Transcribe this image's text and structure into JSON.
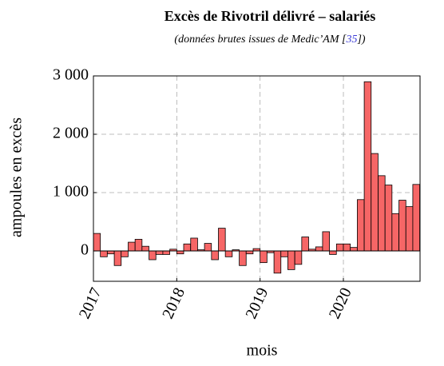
{
  "chart_data": {
    "type": "bar",
    "title": "Excès de Rivotril délivré – salariés",
    "subtitle": [
      "(données brutes issues de Medic’AM [",
      "35",
      "])"
    ],
    "ylabel": "ampoules en excès",
    "xlabel": "mois",
    "color": "#f66666",
    "grid": true,
    "x": [
      2017,
      2017.083,
      2017.167,
      2017.25,
      2017.333,
      2017.417,
      2017.5,
      2017.583,
      2017.667,
      2017.75,
      2017.833,
      2017.917,
      2018,
      2018.083,
      2018.167,
      2018.25,
      2018.333,
      2018.417,
      2018.5,
      2018.583,
      2018.667,
      2018.75,
      2018.833,
      2018.917,
      2019,
      2019.083,
      2019.167,
      2019.25,
      2019.333,
      2019.417,
      2019.5,
      2019.583,
      2019.667,
      2019.75,
      2019.833,
      2019.917,
      2020,
      2020.083,
      2020.167,
      2020.25,
      2020.333,
      2020.417,
      2020.5,
      2020.583,
      2020.667,
      2020.75,
      2020.833
    ],
    "values": [
      300,
      -100,
      -50,
      -250,
      -100,
      150,
      200,
      80,
      -150,
      -60,
      -60,
      30,
      -50,
      120,
      220,
      20,
      130,
      -150,
      390,
      -100,
      20,
      -250,
      -50,
      40,
      -200,
      -30,
      -380,
      -100,
      -320,
      -230,
      240,
      30,
      70,
      330,
      -60,
      120,
      120,
      60,
      880,
      2900,
      1670,
      1290,
      1130,
      640,
      870,
      760,
      1140
    ],
    "xlim": [
      2017,
      2020.92
    ],
    "xticks": [
      2017,
      2018,
      2019,
      2020
    ],
    "ylim": [
      -520,
      3000
    ],
    "yticks": [
      {
        "value": 0,
        "label": "0"
      },
      {
        "value": 1000,
        "label": "1 000"
      },
      {
        "value": 2000,
        "label": "2 000"
      },
      {
        "value": 3000,
        "label": "3 000"
      }
    ]
  }
}
